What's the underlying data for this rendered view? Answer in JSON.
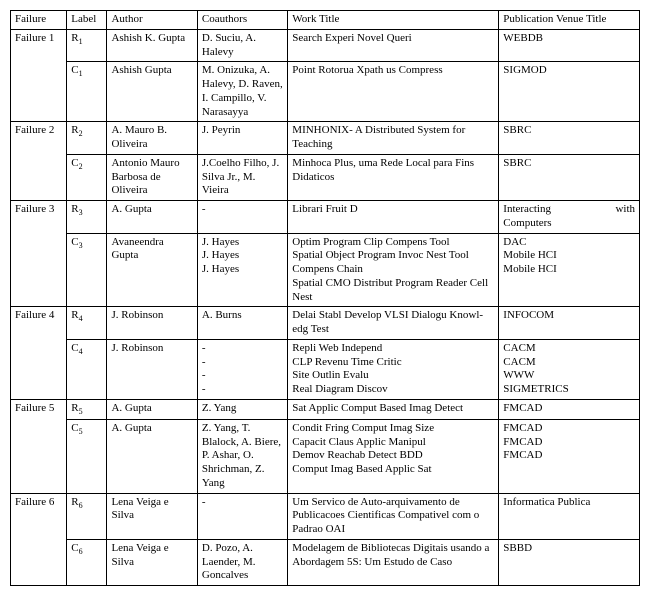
{
  "columns": {
    "failure": "Failure",
    "label": "Label",
    "author": "Author",
    "coauthors": "Coauthors",
    "work_title": "Work Title",
    "venue": "Publication Venue Title"
  },
  "f1": {
    "name": "Failure 1",
    "r_label_base": "R",
    "r_label_sub": "1",
    "r_author": "Ashish K. Gupta",
    "r_co": "D. Suciu, A. Halevy",
    "r_title": "Search Experi Novel Queri",
    "r_venue": "WEBDB",
    "c_label_base": "C",
    "c_label_sub": "1",
    "c_author": "Ashish Gupta",
    "c_co": "M. Onizuka, A. Halevy, D. Raven, I. Campillo, V. Narasayya",
    "c_title": "Point Rotorua Xpath us Compress",
    "c_venue": "SIGMOD"
  },
  "f2": {
    "name": "Failure 2",
    "r_label_base": "R",
    "r_label_sub": "2",
    "r_author": "A. Mauro B. Oliveira",
    "r_co": "J. Peyrin",
    "r_title": "MINHONIX- A Distributed System for Teaching",
    "r_venue": "SBRC",
    "c_label_base": "C",
    "c_label_sub": "2",
    "c_author": "Antonio Mauro Barbosa de Oliveira",
    "c_co": "J.Coelho Filho, J. Silva Jr., M. Vieira",
    "c_title": "Minhoca Plus, uma Rede Local para Fins Didaticos",
    "c_venue": "SBRC"
  },
  "f3": {
    "name": "Failure 3",
    "r_label_base": "R",
    "r_label_sub": "3",
    "r_author": "A. Gupta",
    "r_co": "-",
    "r_title": "Librari Fruit D",
    "r_venue_a": "Interacting",
    "r_venue_b": "with",
    "r_venue_c": "Computers",
    "c_label_base": "C",
    "c_label_sub": "3",
    "c_author": "Avaneendra Gupta",
    "c_co_1": "J. Hayes",
    "c_co_2": "J. Hayes",
    "c_co_blank": " ",
    "c_co_3": "J. Hayes",
    "c_title_1": "Optim Program Clip Compens Tool",
    "c_title_2": "Spatial Object Program Invoc Nest Tool Compens Chain",
    "c_title_3": "Spatial CMO Distribut Program Reader Cell Nest",
    "c_venue_1": "DAC",
    "c_venue_2": "Mobile HCI",
    "c_venue_blank": " ",
    "c_venue_3": "Mobile HCI"
  },
  "f4": {
    "name": "Failure 4",
    "r_label_base": "R",
    "r_label_sub": "4",
    "r_author": "J. Robinson",
    "r_co": "A. Burns",
    "r_title": "Delai Stabl Develop VLSI Dialogu Knowl-edg Test",
    "r_venue": "INFOCOM",
    "c_label_base": "C",
    "c_label_sub": "4",
    "c_author": "J. Robinson",
    "c_co_1": "-",
    "c_co_2": "-",
    "c_co_3": "-",
    "c_co_4": "-",
    "c_title_1": "Repli Web Independ",
    "c_title_2": "CLP Revenu Time Critic",
    "c_title_3": "Site Outlin Evalu",
    "c_title_4": "Real Diagram Discov",
    "c_venue_1": "CACM",
    "c_venue_2": "CACM",
    "c_venue_3": "WWW",
    "c_venue_4": "SIGMETRICS"
  },
  "f5": {
    "name": "Failure 5",
    "r_label_base": "R",
    "r_label_sub": "5",
    "r_author": "A. Gupta",
    "r_co": "Z. Yang",
    "r_title": "Sat Applic Comput Based Imag Detect",
    "r_venue": "FMCAD",
    "c_label_base": "C",
    "c_label_sub": "5",
    "c_author": "A. Gupta",
    "c_co": "Z. Yang, T. Blalock, A. Biere, P. Ashar, O. Shrichman, Z. Yang",
    "c_title_1": "Condit Fring Comput Imag Size",
    "c_title_2": "Capacit Claus Applic Manipul",
    "c_title_blank": " ",
    "c_title_3": "Demov Reachab Detect BDD",
    "c_title_blank2": " ",
    "c_title_4": "Comput Imag Based Applic Sat",
    "c_venue_1": "FMCAD",
    "c_venue_2": "FMCAD",
    "c_venue_blank": " ",
    "c_venue_3": "FMCAD"
  },
  "f6": {
    "name": "Failure 6",
    "r_label_base": "R",
    "r_label_sub": "6",
    "r_author": "Lena Veiga e Silva",
    "r_co": "-",
    "r_title": "Um Servico de Auto-arquivamento de Publicacoes Cientificas Compativel com o Padrao OAI",
    "r_venue": "Informatica Publica",
    "c_label_base": "C",
    "c_label_sub": "6",
    "c_author": "Lena Veiga e Silva",
    "c_co": "D. Pozo, A. Laender, M. Goncalves",
    "c_title": "Modelagem de Bibliotecas Digitais usando a Abordagem 5S: Um Estudo de Caso",
    "c_venue": "SBBD"
  }
}
